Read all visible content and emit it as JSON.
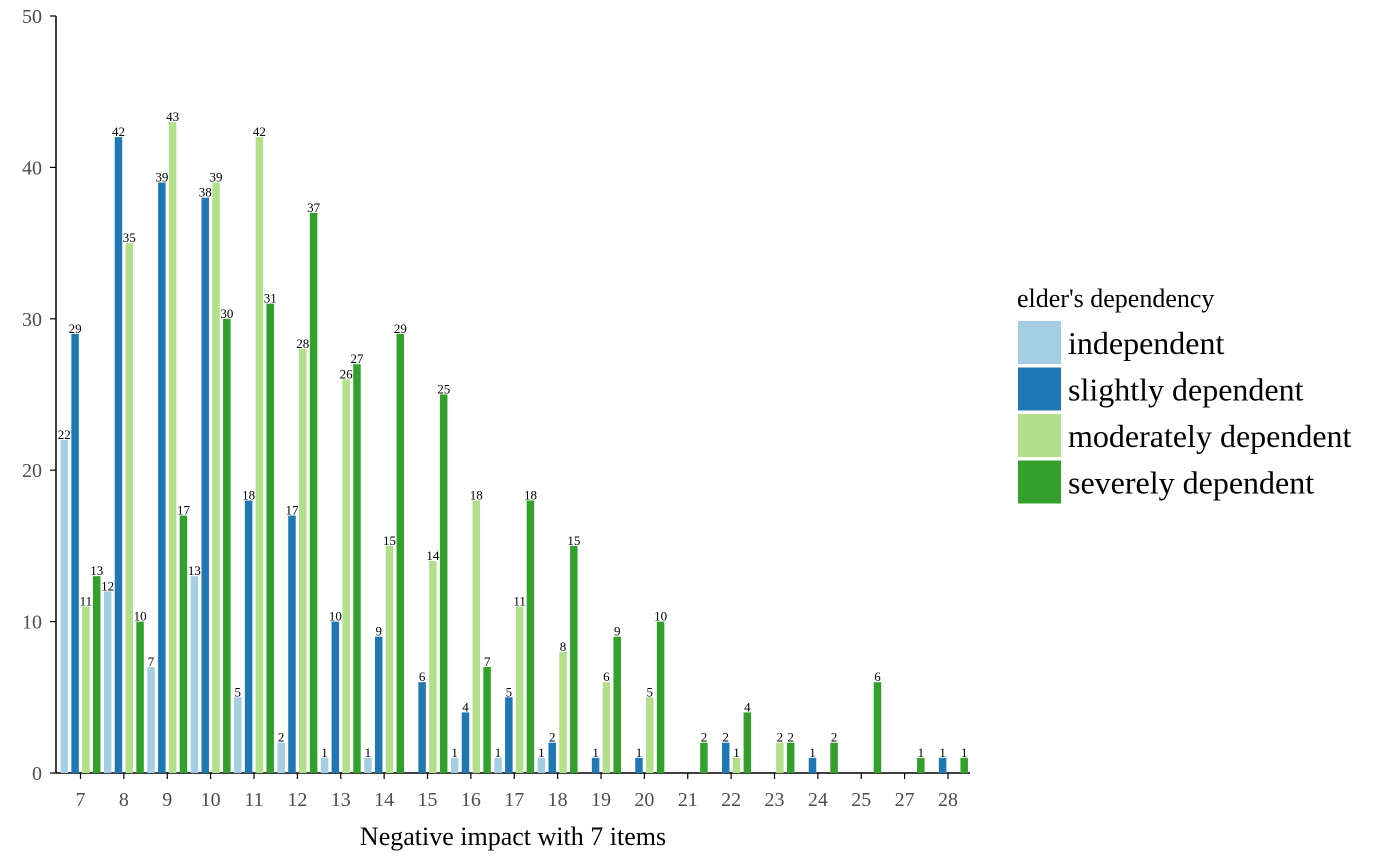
{
  "chart_data": {
    "type": "bar",
    "xlabel": "Negative impact with 7 items",
    "ylabel": "",
    "ylim": [
      0,
      50
    ],
    "yticks": [
      "0",
      "10",
      "20",
      "30",
      "40",
      "50"
    ],
    "grid": false,
    "legend_position": "right",
    "legend_title": "elder's dependency",
    "categories": [
      "7",
      "8",
      "9",
      "10",
      "11",
      "12",
      "13",
      "14",
      "15",
      "16",
      "17",
      "18",
      "19",
      "20",
      "21",
      "22",
      "23",
      "24",
      "25",
      "27",
      "28"
    ],
    "series": [
      {
        "name": "independent",
        "color": "#a6cee3",
        "values": [
          22,
          12,
          7,
          13,
          5,
          2,
          1,
          1,
          0,
          1,
          1,
          1,
          0,
          0,
          0,
          0,
          0,
          0,
          0,
          0,
          0
        ]
      },
      {
        "name": "slightly dependent",
        "color": "#1f78b4",
        "values": [
          29,
          42,
          39,
          38,
          18,
          17,
          10,
          9,
          6,
          4,
          5,
          2,
          1,
          1,
          0,
          2,
          0,
          1,
          0,
          0,
          1
        ]
      },
      {
        "name": "moderately dependent",
        "color": "#b2df8a",
        "values": [
          11,
          35,
          43,
          39,
          42,
          28,
          26,
          15,
          14,
          18,
          11,
          8,
          6,
          5,
          0,
          1,
          2,
          0,
          0,
          0,
          0
        ]
      },
      {
        "name": "severely dependent",
        "color": "#33a02c",
        "values": [
          13,
          10,
          17,
          30,
          31,
          37,
          27,
          29,
          25,
          7,
          18,
          15,
          9,
          10,
          2,
          4,
          2,
          2,
          6,
          1,
          1
        ]
      }
    ]
  }
}
